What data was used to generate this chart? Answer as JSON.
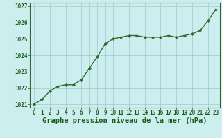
{
  "x": [
    0,
    1,
    2,
    3,
    4,
    5,
    6,
    7,
    8,
    9,
    10,
    11,
    12,
    13,
    14,
    15,
    16,
    17,
    18,
    19,
    20,
    21,
    22,
    23
  ],
  "y": [
    1021.0,
    1021.3,
    1021.8,
    1022.1,
    1022.2,
    1022.2,
    1022.5,
    1023.2,
    1023.9,
    1024.7,
    1025.0,
    1025.1,
    1025.2,
    1025.2,
    1025.1,
    1025.1,
    1025.1,
    1025.2,
    1025.1,
    1025.2,
    1025.3,
    1025.5,
    1026.1,
    1026.8
  ],
  "line_color": "#2d6b2d",
  "marker_color": "#2d6b2d",
  "bg_color": "#cceeee",
  "grid_color": "#99cccc",
  "title": "Graphe pression niveau de la mer (hPa)",
  "title_color": "#1a5c1a",
  "xlim": [
    -0.5,
    23.5
  ],
  "ylim": [
    1020.8,
    1027.2
  ],
  "yticks": [
    1021,
    1022,
    1023,
    1024,
    1025,
    1026,
    1027
  ],
  "xticks": [
    0,
    1,
    2,
    3,
    4,
    5,
    6,
    7,
    8,
    9,
    10,
    11,
    12,
    13,
    14,
    15,
    16,
    17,
    18,
    19,
    20,
    21,
    22,
    23
  ],
  "tick_color": "#1a5c1a",
  "axis_line_color": "#336633",
  "font_size_title": 7.5,
  "font_size_ticks": 5.5,
  "marker_size": 3,
  "line_width": 1.0
}
